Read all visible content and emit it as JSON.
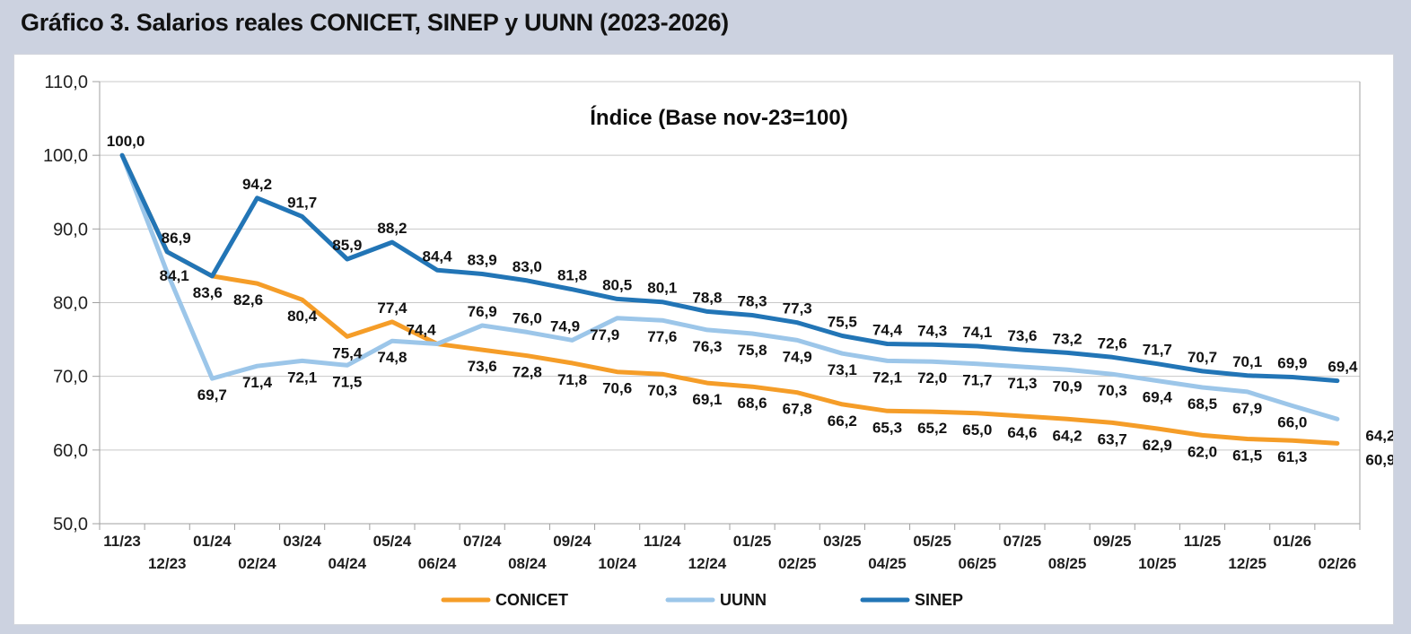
{
  "page": {
    "title": "Gráfico 3. Salarios reales CONICET, SINEP y UUNN (2023-2026)"
  },
  "colors": {
    "background": "#CCD2E0",
    "panel": "#FFFFFF",
    "grid": "#C8C8C8",
    "axis": "#A0A0A0",
    "conicet": "#F59D28",
    "uunn": "#9CC6E9",
    "sinep": "#2275B6"
  },
  "chart_data": {
    "type": "line",
    "title": "Índice (Base nov-23=100)",
    "categories": [
      "11/23",
      "12/23",
      "01/24",
      "02/24",
      "03/24",
      "04/24",
      "05/24",
      "06/24",
      "07/24",
      "08/24",
      "09/24",
      "10/24",
      "11/24",
      "12/24",
      "01/25",
      "02/25",
      "03/25",
      "04/25",
      "05/25",
      "06/25",
      "07/25",
      "08/25",
      "09/25",
      "10/25",
      "11/25",
      "12/25",
      "01/26",
      "02/26"
    ],
    "series": [
      {
        "name": "CONICET",
        "color": "#F59D28",
        "values": [
          100.0,
          86.9,
          83.6,
          82.6,
          80.4,
          75.4,
          77.4,
          74.4,
          73.6,
          72.8,
          71.8,
          70.6,
          70.3,
          69.1,
          68.6,
          67.8,
          66.2,
          65.3,
          65.2,
          65.0,
          64.6,
          64.2,
          63.7,
          62.9,
          62.0,
          61.5,
          61.3,
          60.9
        ],
        "label_pos": [
          "none",
          "none",
          "none",
          "below",
          "below",
          "below",
          "above",
          "above",
          "below",
          "below",
          "below",
          "below",
          "below",
          "below",
          "below",
          "below",
          "below",
          "below",
          "below",
          "below",
          "below",
          "below",
          "below",
          "below",
          "below",
          "below",
          "below",
          "below"
        ]
      },
      {
        "name": "UUNN",
        "color": "#9CC6E9",
        "values": [
          100.0,
          84.1,
          69.7,
          71.4,
          72.1,
          71.5,
          74.8,
          74.4,
          76.9,
          76.0,
          74.9,
          77.9,
          77.6,
          76.3,
          75.8,
          74.9,
          73.1,
          72.1,
          72.0,
          71.7,
          71.3,
          70.9,
          70.3,
          69.4,
          68.5,
          67.9,
          66.0,
          64.2
        ],
        "label_pos": [
          "none",
          "below",
          "below",
          "below",
          "below",
          "below",
          "below",
          "none",
          "above",
          "above",
          "above",
          "below",
          "below",
          "below",
          "below",
          "below",
          "below",
          "below",
          "below",
          "below",
          "below",
          "below",
          "below",
          "below",
          "below",
          "below",
          "below",
          "below"
        ]
      },
      {
        "name": "SINEP",
        "color": "#2275B6",
        "values": [
          100.0,
          86.9,
          83.6,
          94.2,
          91.7,
          85.9,
          88.2,
          84.4,
          83.9,
          83.0,
          81.8,
          80.5,
          80.1,
          78.8,
          78.3,
          77.3,
          75.5,
          74.4,
          74.3,
          74.1,
          73.6,
          73.2,
          72.6,
          71.7,
          70.7,
          70.1,
          69.9,
          69.4
        ],
        "label_pos": [
          "above",
          "above",
          "below",
          "above",
          "above",
          "above",
          "above",
          "above",
          "above",
          "above",
          "above",
          "above",
          "above",
          "above",
          "above",
          "above",
          "above",
          "above",
          "above",
          "above",
          "above",
          "above",
          "above",
          "above",
          "above",
          "above",
          "above",
          "above"
        ]
      }
    ],
    "ylim": [
      50,
      110
    ],
    "yticks": [
      50,
      60,
      70,
      80,
      90,
      100,
      110
    ],
    "ytick_labels": [
      "50,0",
      "60,0",
      "70,0",
      "80,0",
      "90,0",
      "100,0",
      "110,0"
    ],
    "number_format": "decimal-comma",
    "grid": "horizontal",
    "legend_position": "bottom",
    "legend": [
      "CONICET",
      "UUNN",
      "SINEP"
    ]
  }
}
